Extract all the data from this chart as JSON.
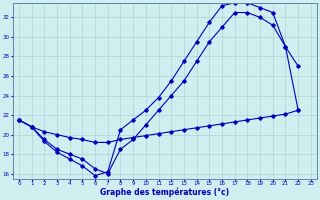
{
  "xlabel": "Graphe des températures (°c)",
  "bg_color": "#d0eef0",
  "line_color": "#0000bb",
  "grid_color": "#a0cccc",
  "ylim": [
    15.5,
    33.5
  ],
  "yticks": [
    16,
    18,
    20,
    22,
    24,
    26,
    28,
    30,
    32
  ],
  "xlim": [
    -0.5,
    23.5
  ],
  "xticks": [
    0,
    1,
    2,
    3,
    4,
    5,
    6,
    7,
    8,
    9,
    10,
    11,
    12,
    13,
    14,
    15,
    16,
    17,
    18,
    19,
    20,
    21,
    22,
    23
  ],
  "line1_x": [
    0,
    1,
    2,
    3,
    4,
    5,
    6,
    7,
    8,
    9,
    10,
    11,
    12,
    13,
    14,
    15,
    16,
    17,
    18,
    19,
    20,
    21,
    22
  ],
  "line1_y": [
    21.5,
    20.8,
    19.3,
    18.2,
    17.5,
    16.8,
    15.8,
    16.2,
    20.5,
    21.5,
    22.5,
    23.8,
    25.5,
    27.5,
    29.5,
    31.5,
    33.2,
    33.5,
    33.5,
    33.0,
    32.5,
    29.0,
    22.5
  ],
  "line2_x": [
    0,
    1,
    2,
    3,
    4,
    5,
    6,
    7,
    8,
    9,
    10,
    11,
    12,
    13,
    14,
    15,
    16,
    17,
    18,
    19,
    20,
    21,
    22
  ],
  "line2_y": [
    21.5,
    20.8,
    19.5,
    18.5,
    18.0,
    17.5,
    16.5,
    16.0,
    18.5,
    19.5,
    21.0,
    22.5,
    24.0,
    25.5,
    27.5,
    29.5,
    31.0,
    32.5,
    32.5,
    32.0,
    31.2,
    29.0,
    27.0
  ],
  "line3_x": [
    0,
    1,
    2,
    3,
    4,
    5,
    6,
    7,
    8,
    9,
    10,
    11,
    12,
    13,
    14,
    15,
    16,
    17,
    18,
    19,
    20,
    21,
    22
  ],
  "line3_y": [
    21.5,
    20.8,
    20.3,
    20.0,
    19.7,
    19.5,
    19.2,
    19.2,
    19.5,
    19.7,
    19.9,
    20.1,
    20.3,
    20.5,
    20.7,
    20.9,
    21.1,
    21.3,
    21.5,
    21.7,
    21.9,
    22.1,
    22.5
  ]
}
